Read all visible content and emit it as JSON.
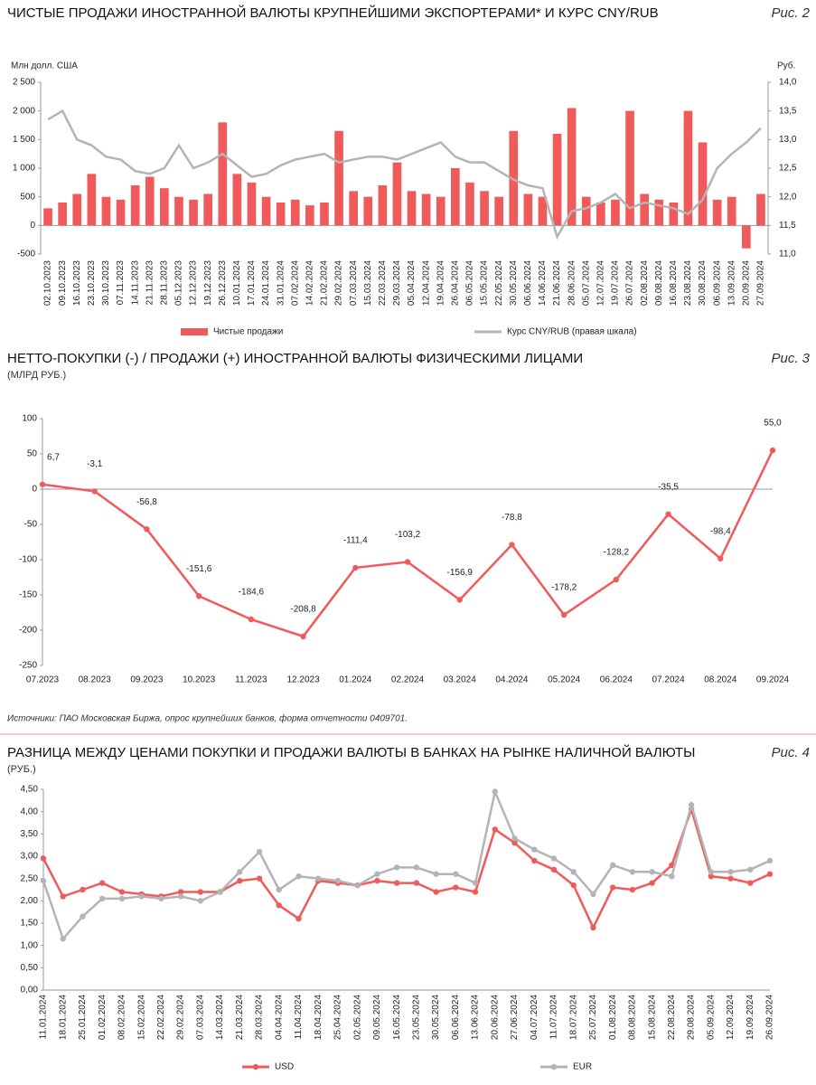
{
  "chart_data": [
    {
      "type": "bar",
      "title": "ЧИСТЫЕ ПРОДАЖИ ИНОСТРАННОЙ ВАЛЮТЫ КРУПНЕЙШИМИ ЭКСПОРТЕРАМИ* И КУРС CNY/RUB",
      "figure": "Рис. 2",
      "ylabel": "Млн долл. США",
      "y2label": "Руб.",
      "categories": [
        "02.10.2023",
        "09.10.2023",
        "16.10.2023",
        "23.10.2023",
        "30.10.2023",
        "07.11.2023",
        "14.11.2023",
        "21.11.2023",
        "28.11.2023",
        "05.12.2023",
        "12.12.2023",
        "19.12.2023",
        "26.12.2023",
        "10.01.2024",
        "17.01.2024",
        "24.01.2024",
        "31.01.2024",
        "07.02.2024",
        "14.02.2024",
        "21.02.2024",
        "29.02.2024",
        "07.03.2024",
        "15.03.2024",
        "22.03.2024",
        "29.03.2024",
        "05.04.2024",
        "12.04.2024",
        "19.04.2024",
        "26.04.2024",
        "06.05.2024",
        "15.05.2024",
        "22.05.2024",
        "30.05.2024",
        "06.06.2024",
        "14.06.2024",
        "21.06.2024",
        "28.06.2024",
        "05.07.2024",
        "12.07.2024",
        "19.07.2024",
        "26.07.2024",
        "02.08.2024",
        "09.08.2024",
        "16.08.2024",
        "23.08.2024",
        "30.08.2024",
        "06.09.2024",
        "13.09.2024",
        "20.09.2024",
        "27.09.2024"
      ],
      "series": [
        {
          "name": "Чистые продажи",
          "color": "#f05a5a",
          "values": [
            300,
            400,
            550,
            900,
            500,
            450,
            700,
            850,
            650,
            500,
            450,
            550,
            1800,
            900,
            750,
            500,
            400,
            450,
            350,
            400,
            1650,
            600,
            500,
            700,
            1100,
            600,
            550,
            500,
            1000,
            750,
            600,
            500,
            1650,
            550,
            500,
            1600,
            2050,
            500,
            400,
            450,
            2000,
            550,
            450,
            400,
            2000,
            1450,
            450,
            500,
            -400,
            550
          ]
        },
        {
          "name": "Курс CNY/RUB (правая шкала)",
          "color": "#b4b4b4",
          "axis": "y2",
          "values": [
            13.35,
            13.5,
            13.0,
            12.9,
            12.7,
            12.65,
            12.45,
            12.4,
            12.5,
            12.9,
            12.5,
            12.6,
            12.75,
            12.55,
            12.35,
            12.4,
            12.55,
            12.65,
            12.7,
            12.75,
            12.6,
            12.65,
            12.7,
            12.7,
            12.65,
            12.75,
            12.85,
            12.95,
            12.7,
            12.6,
            12.6,
            12.45,
            12.3,
            12.2,
            12.15,
            11.3,
            11.75,
            11.8,
            11.9,
            12.05,
            11.8,
            11.9,
            11.85,
            11.8,
            11.7,
            11.95,
            12.5,
            12.75,
            12.95,
            13.2
          ]
        }
      ],
      "ylim": [
        -500,
        2500
      ],
      "yticks": [
        -500,
        0,
        500,
        {
          "value": 1000,
          "label": "1 000"
        },
        {
          "value": 1500,
          "label": "1 500"
        },
        {
          "value": 2000,
          "label": "2 000"
        },
        {
          "value": 2500,
          "label": "2 500"
        }
      ],
      "y2lim": [
        11,
        14
      ],
      "y2ticks": [
        {
          "value": 11,
          "label": "11,0"
        },
        {
          "value": 11.5,
          "label": "11,5"
        },
        {
          "value": 12,
          "label": "12,0"
        },
        {
          "value": 12.5,
          "label": "12,5"
        },
        {
          "value": 13,
          "label": "13,0"
        },
        {
          "value": 13.5,
          "label": "13,5"
        },
        {
          "value": 14,
          "label": "14,0"
        }
      ]
    },
    {
      "type": "line",
      "title": "НЕТТО-ПОКУПКИ (-) / ПРОДАЖИ (+) ИНОСТРАННОЙ ВАЛЮТЫ ФИЗИЧЕСКИМИ ЛИЦАМИ",
      "figure": "Рис. 3",
      "subtitle": "(МЛРД РУБ.)",
      "categories": [
        "07.2023",
        "08.2023",
        "09.2023",
        "10.2023",
        "11.2023",
        "12.2023",
        "01.2024",
        "02.2024",
        "03.2024",
        "04.2024",
        "05.2024",
        "06.2024",
        "07.2024",
        "08.2024",
        "09.2024"
      ],
      "series": [
        {
          "color": "#f05a5a",
          "values": [
            6.7,
            -3.1,
            -56.8,
            -151.6,
            -184.6,
            -208.8,
            -111.4,
            -103.2,
            -156.9,
            -78.8,
            -178.2,
            -128.2,
            -35.5,
            -98.4,
            55.0
          ],
          "value_labels": [
            "6,7",
            "-3,1",
            "-56,8",
            "-151,6",
            "-184,6",
            "-208,8",
            "-111,4",
            "-103,2",
            "-156,9",
            "-78,8",
            "-178,2",
            "-128,2",
            "-35,5",
            "-98,4",
            "55,0"
          ]
        }
      ],
      "ylim": [
        -250,
        100
      ],
      "yticks": [
        -250,
        -200,
        -150,
        -100,
        -50,
        0,
        50,
        100
      ],
      "source": "Источники: ПАО Московская Биржа, опрос крупнейших банков, форма отчетности 0409701."
    },
    {
      "type": "line",
      "title": "РАЗНИЦА МЕЖДУ ЦЕНАМИ ПОКУПКИ И ПРОДАЖИ ВАЛЮТЫ В БАНКАХ НА РЫНКЕ НАЛИЧНОЙ ВАЛЮТЫ",
      "figure": "Рис. 4",
      "subtitle": "(РУБ.)",
      "categories": [
        "11.01.2024",
        "18.01.2024",
        "25.01.2024",
        "01.02.2024",
        "08.02.2024",
        "15.02.2024",
        "22.02.2024",
        "29.02.2024",
        "07.03.2024",
        "14.03.2024",
        "21.03.2024",
        "28.03.2024",
        "04.04.2024",
        "11.04.2024",
        "18.04.2024",
        "25.04.2024",
        "02.05.2024",
        "09.05.2024",
        "16.05.2024",
        "23.05.2024",
        "30.05.2024",
        "06.06.2024",
        "13.06.2024",
        "20.06.2024",
        "27.06.2024",
        "04.07.2024",
        "11.07.2024",
        "18.07.2024",
        "25.07.2024",
        "01.08.2024",
        "08.08.2024",
        "15.08.2024",
        "22.08.2024",
        "29.08.2024",
        "05.09.2024",
        "12.09.2024",
        "19.09.2024",
        "26.09.2024"
      ],
      "series": [
        {
          "name": "USD",
          "color": "#f05a5a",
          "values": [
            2.95,
            2.1,
            2.25,
            2.4,
            2.2,
            2.15,
            2.1,
            2.2,
            2.2,
            2.2,
            2.45,
            2.5,
            1.9,
            1.6,
            2.45,
            2.4,
            2.35,
            2.45,
            2.4,
            2.4,
            2.2,
            2.3,
            2.2,
            3.6,
            3.3,
            2.9,
            2.7,
            2.35,
            1.4,
            2.3,
            2.25,
            2.4,
            2.8,
            4.05,
            2.55,
            2.5,
            2.4,
            2.6
          ]
        },
        {
          "name": "EUR",
          "color": "#b4b4b4",
          "values": [
            2.45,
            1.15,
            1.65,
            2.05,
            2.05,
            2.1,
            2.05,
            2.1,
            2.0,
            2.2,
            2.65,
            3.1,
            2.25,
            2.55,
            2.5,
            2.45,
            2.35,
            2.6,
            2.75,
            2.75,
            2.6,
            2.6,
            2.4,
            4.45,
            3.4,
            3.15,
            2.95,
            2.65,
            2.15,
            2.8,
            2.65,
            2.65,
            2.55,
            4.15,
            2.65,
            2.65,
            2.7,
            2.9
          ]
        }
      ],
      "ylim": [
        0,
        4.5
      ],
      "yticks": [
        {
          "value": 0,
          "label": "0,00"
        },
        {
          "value": 0.5,
          "label": "0,50"
        },
        {
          "value": 1,
          "label": "1,00"
        },
        {
          "value": 1.5,
          "label": "1,50"
        },
        {
          "value": 2,
          "label": "2,00"
        },
        {
          "value": 2.5,
          "label": "2,50"
        },
        {
          "value": 3,
          "label": "3,00"
        },
        {
          "value": 3.5,
          "label": "3,50"
        },
        {
          "value": 4,
          "label": "4,00"
        },
        {
          "value": 4.5,
          "label": "4,50"
        }
      ]
    }
  ]
}
